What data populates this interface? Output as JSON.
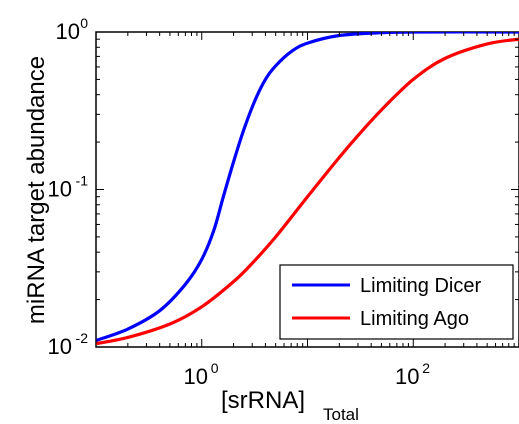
{
  "chart_data": {
    "type": "line",
    "title": "",
    "xlabel_main": "[srRNA]",
    "xlabel_sub": "Total",
    "ylabel": "miRNA target abundance",
    "xscale": "log",
    "yscale": "log",
    "xlim": [
      0.1,
      1000
    ],
    "ylim": [
      0.01,
      1
    ],
    "grid": false,
    "legend_position": "bottom-right",
    "x_ticks": [
      {
        "base": "10",
        "exp": "0",
        "value": 1
      },
      {
        "base": "10",
        "exp": "2",
        "value": 100
      }
    ],
    "y_ticks": [
      {
        "base": "10",
        "exp": "0",
        "value": 1
      },
      {
        "base": "10",
        "exp": "-1",
        "value": 0.1
      },
      {
        "base": "10",
        "exp": "-2",
        "value": 0.01
      }
    ],
    "series": [
      {
        "name": "Limiting Dicer",
        "color": "#0000ff",
        "x": [
          0.1,
          0.2,
          0.4,
          0.7,
          1.0,
          1.3,
          1.6,
          2.0,
          2.5,
          3.2,
          4.0,
          5.0,
          7.0,
          10.0,
          20.0,
          50.0,
          100.0,
          1000.0
        ],
        "y": [
          0.011,
          0.013,
          0.017,
          0.025,
          0.036,
          0.055,
          0.09,
          0.15,
          0.24,
          0.37,
          0.5,
          0.61,
          0.75,
          0.85,
          0.95,
          0.99,
          1.0,
          1.0
        ]
      },
      {
        "name": "Limiting Ago",
        "color": "#ff0000",
        "x": [
          0.1,
          0.2,
          0.5,
          1.0,
          2.0,
          3.0,
          5.0,
          10.0,
          20.0,
          30.0,
          50.0,
          100.0,
          200.0,
          500.0,
          1000.0
        ],
        "y": [
          0.0105,
          0.0115,
          0.014,
          0.018,
          0.026,
          0.034,
          0.05,
          0.09,
          0.16,
          0.22,
          0.32,
          0.5,
          0.68,
          0.84,
          0.9
        ]
      }
    ]
  }
}
